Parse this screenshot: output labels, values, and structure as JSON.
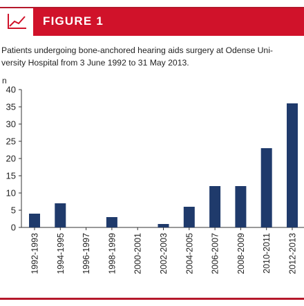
{
  "figure": {
    "label": "FIGURE 1",
    "caption_line1": "Patients undergoing bone-anchored hearing aids surgery at Odense Uni-",
    "caption_line2": "versity Hospital from 3 June 1992 to 31 May 2013.",
    "accent_color": "#d0122a",
    "icon": "line-chart-icon"
  },
  "chart_data": {
    "type": "bar",
    "ylabel": "n",
    "ylim": [
      0,
      40
    ],
    "yticks": [
      0,
      5,
      10,
      15,
      20,
      25,
      30,
      35,
      40
    ],
    "categories": [
      "1992-1993",
      "1994-1995",
      "1996-1997",
      "1998-1999",
      "2000-2001",
      "2002-2003",
      "2004-2005",
      "2006-2007",
      "2008-2009",
      "2010-2011",
      "2012-2013"
    ],
    "values": [
      4,
      7,
      0,
      3,
      0,
      1,
      6,
      12,
      12,
      23,
      36
    ],
    "bar_color": "#1f3a6b",
    "grid": false
  }
}
